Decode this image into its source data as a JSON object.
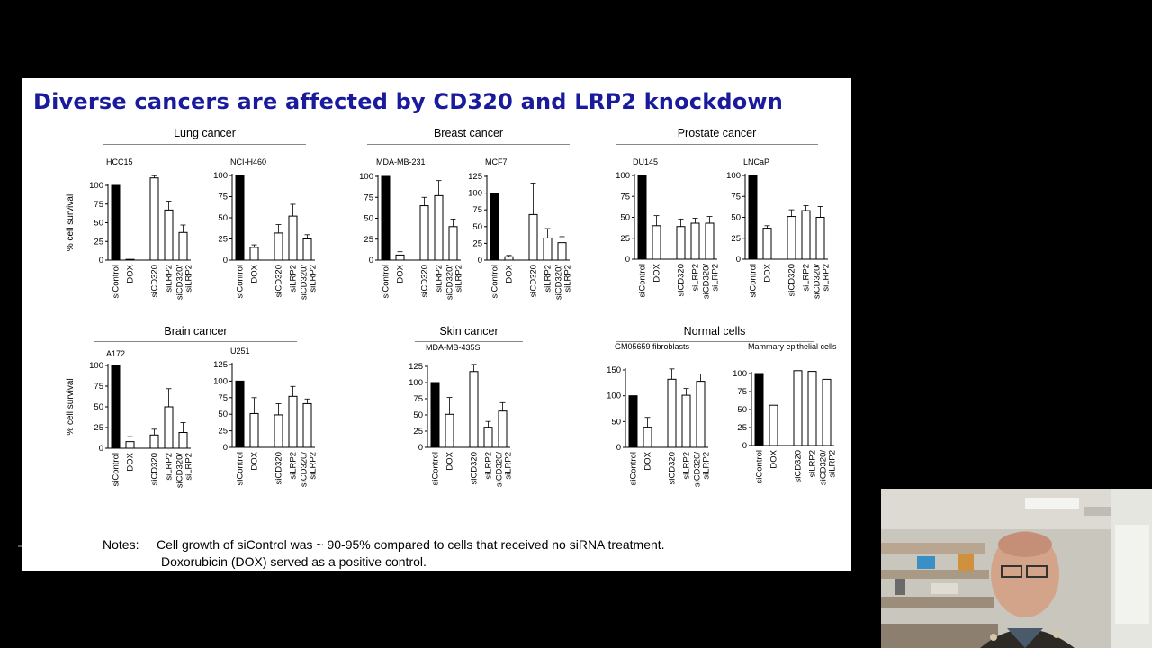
{
  "slide": {
    "title": "Diverse cancers are affected by CD320 and LRP2 knockdown",
    "notes_label": "Notes:",
    "notes": [
      "Cell growth of siControl was ~ 90-95% compared to cells that received no siRNA treatment.",
      "Doxorubicin (DOX) served as a positive control."
    ]
  },
  "groups": [
    {
      "label": "Lung cancer"
    },
    {
      "label": "Breast cancer"
    },
    {
      "label": "Prostate cancer"
    },
    {
      "label": "Brain cancer"
    },
    {
      "label": "Skin cancer"
    },
    {
      "label": "Normal cells"
    }
  ],
  "colors": {
    "title": "#1a1a9c",
    "control_bar": "#000000",
    "treated_bar": "#ffffff",
    "background": "#000000"
  },
  "chart_data": [
    {
      "type": "bar",
      "title": "HCC15",
      "ylabel": "% cell survival",
      "ylim": [
        0,
        100
      ],
      "yticks": [
        0,
        25,
        50,
        75,
        100
      ],
      "categories": [
        "siControl",
        "DOX",
        "siCD320",
        "siLRP2",
        "siCD320/\nsiLRP2"
      ],
      "values": [
        100,
        1,
        110,
        67,
        37
      ],
      "errors": [
        0,
        0,
        3,
        12,
        10
      ]
    },
    {
      "type": "bar",
      "title": "NCI-H460",
      "ylabel": "",
      "ylim": [
        0,
        100
      ],
      "yticks": [
        0,
        25,
        50,
        75,
        100
      ],
      "categories": [
        "siControl",
        "DOX",
        "siCD320",
        "siLRP2",
        "siCD320/\nsiLRP2"
      ],
      "values": [
        100,
        15,
        32,
        52,
        25
      ],
      "errors": [
        0,
        3,
        10,
        14,
        5
      ]
    },
    {
      "type": "bar",
      "title": "MDA-MB-231",
      "ylabel": "",
      "ylim": [
        0,
        100
      ],
      "yticks": [
        0,
        25,
        50,
        75,
        100
      ],
      "categories": [
        "siControl",
        "DOX",
        "siCD320",
        "siLRP2",
        "siCD320/\nsiLRP2"
      ],
      "values": [
        100,
        6,
        65,
        77,
        40
      ],
      "errors": [
        0,
        4,
        10,
        18,
        9
      ]
    },
    {
      "type": "bar",
      "title": "MCF7",
      "ylabel": "",
      "ylim": [
        0,
        125
      ],
      "yticks": [
        0,
        25,
        50,
        75,
        100,
        125
      ],
      "categories": [
        "siControl",
        "DOX",
        "siCD320",
        "siLRP2",
        "siCD320/\nsiLRP2"
      ],
      "values": [
        100,
        5,
        68,
        33,
        26
      ],
      "errors": [
        0,
        2,
        47,
        14,
        9
      ]
    },
    {
      "type": "bar",
      "title": "DU145",
      "ylabel": "",
      "ylim": [
        0,
        100
      ],
      "yticks": [
        0,
        25,
        50,
        75,
        100
      ],
      "categories": [
        "siControl",
        "DOX",
        "siCD320",
        "siLRP2",
        "siCD320/\nsiLRP2"
      ],
      "values": [
        100,
        40,
        39,
        43,
        43
      ],
      "errors": [
        0,
        12,
        9,
        6,
        8
      ]
    },
    {
      "type": "bar",
      "title": "LNCaP",
      "ylabel": "",
      "ylim": [
        0,
        100
      ],
      "yticks": [
        0,
        25,
        50,
        75,
        100
      ],
      "categories": [
        "siControl",
        "DOX",
        "siCD320",
        "siLRP2",
        "siCD320/\nsiLRP2"
      ],
      "values": [
        100,
        37,
        51,
        58,
        50
      ],
      "errors": [
        0,
        3,
        8,
        6,
        13
      ]
    },
    {
      "type": "bar",
      "title": "A172",
      "ylabel": "% cell survival",
      "ylim": [
        0,
        100
      ],
      "yticks": [
        0,
        25,
        50,
        75,
        100
      ],
      "categories": [
        "siControl",
        "DOX",
        "siCD320",
        "siLRP2",
        "siCD320/\nsiLRP2"
      ],
      "values": [
        100,
        8,
        16,
        50,
        19
      ],
      "errors": [
        0,
        6,
        7,
        22,
        12
      ]
    },
    {
      "type": "bar",
      "title": "U251",
      "ylabel": "",
      "ylim": [
        0,
        125
      ],
      "yticks": [
        0,
        25,
        50,
        75,
        100,
        125
      ],
      "categories": [
        "siControl",
        "DOX",
        "siCD320",
        "siLRP2",
        "siCD320/\nsiLRP2"
      ],
      "values": [
        100,
        51,
        49,
        77,
        66
      ],
      "errors": [
        0,
        24,
        17,
        15,
        7
      ]
    },
    {
      "type": "bar",
      "title": "MDA-MB-435S",
      "ylabel": "",
      "ylim": [
        0,
        125
      ],
      "yticks": [
        0,
        25,
        50,
        75,
        100,
        125
      ],
      "categories": [
        "siControl",
        "DOX",
        "siCD320",
        "siLRP2",
        "siCD320/\nsiLRP2"
      ],
      "values": [
        100,
        51,
        117,
        31,
        56
      ],
      "errors": [
        0,
        26,
        11,
        9,
        13
      ]
    },
    {
      "type": "bar",
      "title": "GM05659 fibroblasts",
      "ylabel": "",
      "ylim": [
        0,
        150
      ],
      "yticks": [
        0,
        50,
        100,
        150
      ],
      "categories": [
        "siControl",
        "DOX",
        "siCD320",
        "siLRP2",
        "siCD320/\nsiLRP2"
      ],
      "values": [
        100,
        39,
        132,
        101,
        128
      ],
      "errors": [
        0,
        19,
        20,
        13,
        14
      ]
    },
    {
      "type": "bar",
      "title": "Mammary epithelial cells",
      "ylabel": "",
      "ylim": [
        0,
        100
      ],
      "yticks": [
        0,
        25,
        50,
        75,
        100
      ],
      "categories": [
        "siControl",
        "DOX",
        "siCD320",
        "siLRP2",
        "siCD320/\nsiLRP2"
      ],
      "values": [
        100,
        56,
        104,
        103,
        92
      ],
      "errors": [
        0,
        0,
        0,
        0,
        0
      ]
    }
  ]
}
